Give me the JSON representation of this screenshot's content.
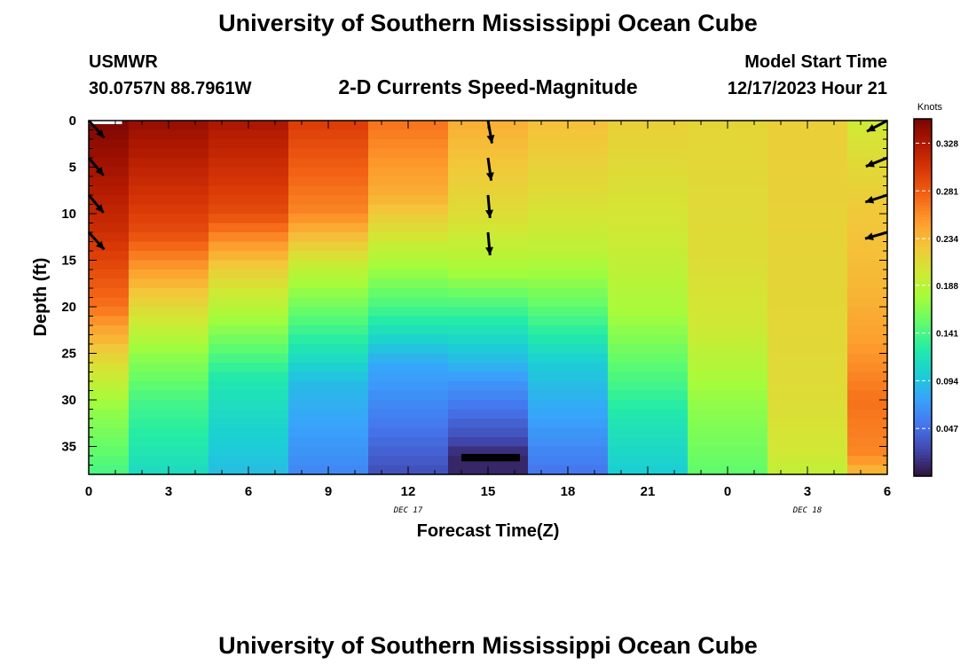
{
  "header": {
    "title": "University of Southern Mississippi Ocean Cube",
    "station": "USMWR",
    "coordinates": "30.0757N  88.7961W",
    "subtitle": "2-D Currents Speed-Magnitude",
    "model_start_label": "Model Start Time",
    "model_start_value": "12/17/2023 Hour 21"
  },
  "footer": {
    "title": "University of Southern Mississippi Ocean Cube"
  },
  "colors": {
    "missing": "#000000",
    "arrow": "#000000",
    "palette": [
      "#30123b",
      "#4145ab",
      "#4675ed",
      "#39a2fc",
      "#1bcfd4",
      "#24eca6",
      "#61fc6c",
      "#a4fc3b",
      "#d1e834",
      "#f3c63a",
      "#fe9b2d",
      "#f36315",
      "#d93806",
      "#b11901",
      "#7a0402"
    ]
  },
  "chart_data": {
    "type": "heatmap",
    "title": "2-D Currents Speed-Magnitude",
    "xlabel": "Forecast Time(Z)",
    "ylabel": "Depth (ft)",
    "x_ticks": [
      "0",
      "3",
      "6",
      "9",
      "12",
      "15",
      "18",
      "21",
      "0",
      "3",
      "6"
    ],
    "x_tick_hours": [
      0,
      3,
      6,
      9,
      12,
      15,
      18,
      21,
      24,
      27,
      30
    ],
    "date_labels": [
      {
        "label": "DEC 17",
        "hour": 12
      },
      {
        "label": "DEC 18",
        "hour": 27
      }
    ],
    "y_ticks": [
      0,
      5,
      10,
      15,
      20,
      25,
      30,
      35
    ],
    "xlim": [
      0,
      30
    ],
    "ylim": [
      0,
      38
    ],
    "colorbar": {
      "label": "Knots",
      "range": [
        0.0,
        0.352
      ],
      "ticks": [
        "0.328",
        "0.281",
        "0.234",
        "0.188",
        "0.141",
        "0.094",
        "0.047"
      ],
      "tick_values": [
        0.328,
        0.281,
        0.234,
        0.188,
        0.141,
        0.094,
        0.047
      ]
    },
    "time_columns": [
      {
        "hour": 0,
        "profile": [
          [
            0,
            0.35
          ],
          [
            12,
            0.31
          ],
          [
            20,
            0.27
          ],
          [
            26,
            0.21
          ],
          [
            31,
            0.17
          ],
          [
            38,
            0.14
          ]
        ]
      },
      {
        "hour": 3,
        "profile": [
          [
            0,
            0.34
          ],
          [
            12,
            0.29
          ],
          [
            18,
            0.23
          ],
          [
            25,
            0.17
          ],
          [
            30,
            0.14
          ],
          [
            38,
            0.11
          ]
        ]
      },
      {
        "hour": 6,
        "profile": [
          [
            0,
            0.33
          ],
          [
            10,
            0.29
          ],
          [
            16,
            0.22
          ],
          [
            22,
            0.17
          ],
          [
            28,
            0.12
          ],
          [
            38,
            0.09
          ]
        ]
      },
      {
        "hour": 9,
        "profile": [
          [
            0,
            0.3
          ],
          [
            10,
            0.26
          ],
          [
            16,
            0.19
          ],
          [
            22,
            0.14
          ],
          [
            28,
            0.09
          ],
          [
            38,
            0.06
          ]
        ]
      },
      {
        "hour": 12,
        "profile": [
          [
            0,
            0.27
          ],
          [
            8,
            0.24
          ],
          [
            14,
            0.19
          ],
          [
            20,
            0.14
          ],
          [
            26,
            0.08
          ],
          [
            38,
            0.03
          ]
        ]
      },
      {
        "hour": 15,
        "profile": [
          [
            0,
            0.24
          ],
          [
            10,
            0.21
          ],
          [
            16,
            0.18
          ],
          [
            22,
            0.12
          ],
          [
            28,
            0.07
          ],
          [
            34,
            0.03
          ],
          [
            36,
            0.01
          ]
        ]
      },
      {
        "hour": 18,
        "profile": [
          [
            0,
            0.23
          ],
          [
            8,
            0.21
          ],
          [
            14,
            0.19
          ],
          [
            20,
            0.15
          ],
          [
            26,
            0.1
          ],
          [
            38,
            0.05
          ]
        ]
      },
      {
        "hour": 21,
        "profile": [
          [
            0,
            0.22
          ],
          [
            12,
            0.2
          ],
          [
            20,
            0.18
          ],
          [
            26,
            0.15
          ],
          [
            32,
            0.12
          ],
          [
            38,
            0.1
          ]
        ]
      },
      {
        "hour": 24,
        "profile": [
          [
            0,
            0.215
          ],
          [
            15,
            0.21
          ],
          [
            22,
            0.2
          ],
          [
            30,
            0.17
          ],
          [
            38,
            0.15
          ]
        ]
      },
      {
        "hour": 27,
        "profile": [
          [
            0,
            0.22
          ],
          [
            20,
            0.215
          ],
          [
            30,
            0.21
          ],
          [
            36,
            0.2
          ],
          [
            38,
            0.19
          ]
        ]
      },
      {
        "hour": 30,
        "profile": [
          [
            0,
            0.2
          ],
          [
            10,
            0.225
          ],
          [
            18,
            0.235
          ],
          [
            24,
            0.25
          ],
          [
            30,
            0.27
          ],
          [
            36,
            0.26
          ],
          [
            38,
            0.23
          ]
        ]
      }
    ],
    "missing_data": [
      {
        "hour_start": 14,
        "hour_end": 16.2,
        "depth_start": 35.8,
        "depth_end": 36.6
      }
    ],
    "arrows": [
      {
        "hour": 0,
        "depth": 0,
        "angle_deg": 48
      },
      {
        "hour": 0,
        "depth": 4,
        "angle_deg": 50
      },
      {
        "hour": 0,
        "depth": 8,
        "angle_deg": 50
      },
      {
        "hour": 0,
        "depth": 12,
        "angle_deg": 48
      },
      {
        "hour": 15,
        "depth": 0,
        "angle_deg": 80
      },
      {
        "hour": 15,
        "depth": 4,
        "angle_deg": 82
      },
      {
        "hour": 15,
        "depth": 8,
        "angle_deg": 85
      },
      {
        "hour": 15,
        "depth": 12,
        "angle_deg": 85
      },
      {
        "hour": 30,
        "depth": 0,
        "angle_deg": 152
      },
      {
        "hour": 30,
        "depth": 4,
        "angle_deg": 158
      },
      {
        "hour": 30,
        "depth": 8,
        "angle_deg": 162
      },
      {
        "hour": 30,
        "depth": 12,
        "angle_deg": 164
      }
    ]
  }
}
